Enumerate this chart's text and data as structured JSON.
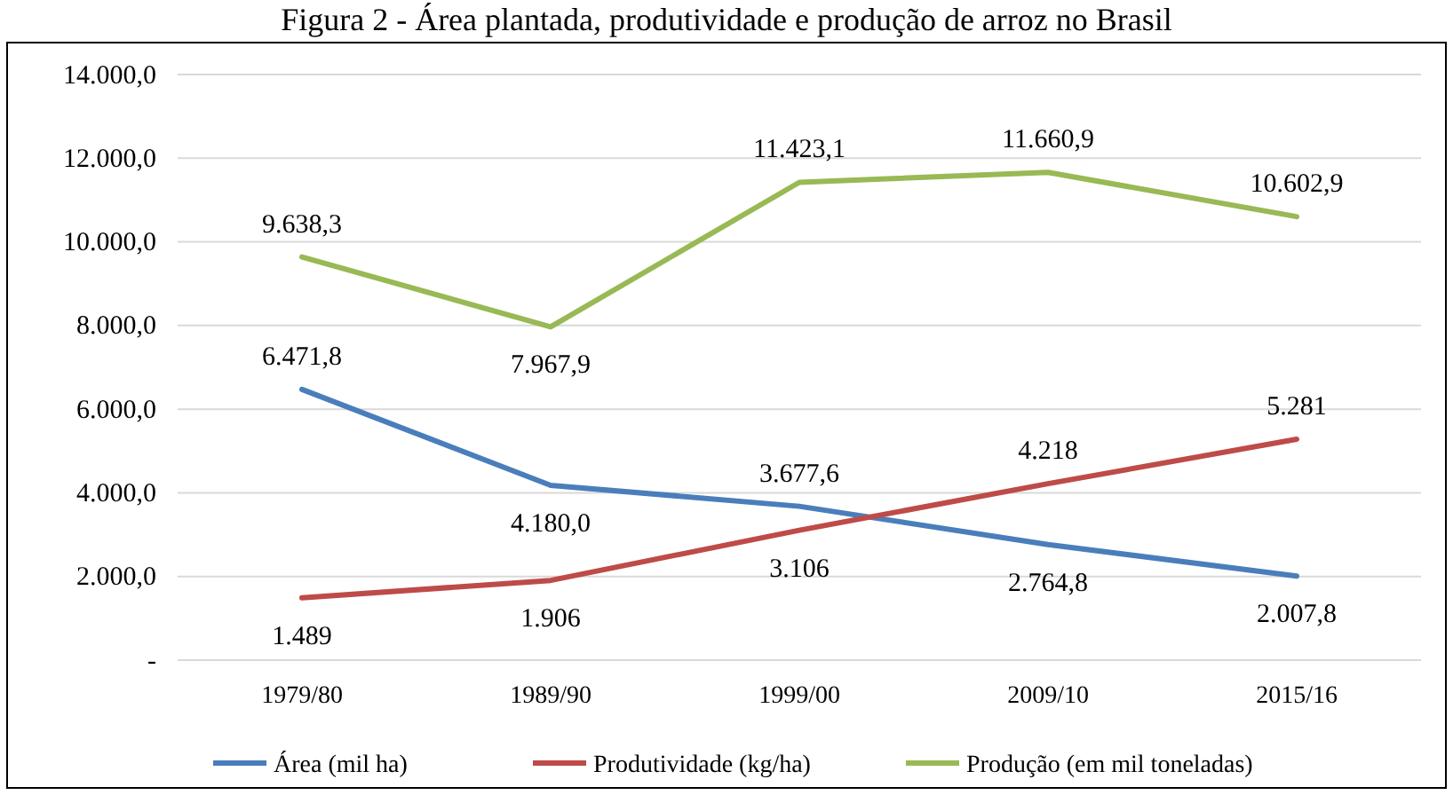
{
  "chart_data": {
    "type": "line",
    "title": "Figura 2 - Área plantada, produtividade e produção de arroz no Brasil",
    "categories": [
      "1979/80",
      "1989/90",
      "1999/00",
      "2009/10",
      "2015/16"
    ],
    "series": [
      {
        "name": "Área (mil ha)",
        "color": "#4a7ebb",
        "values": [
          6471.8,
          4180.0,
          3677.6,
          2764.8,
          2007.8
        ],
        "value_labels": [
          "6.471,8",
          "4.180,0",
          "3.677,6",
          "2.764,8",
          "2.007,8"
        ]
      },
      {
        "name": "Produtividade (kg/ha)",
        "color": "#be4b48",
        "values": [
          1489,
          1906,
          3106,
          4218,
          5281
        ],
        "value_labels": [
          "1.489",
          "1.906",
          "3.106",
          "4.218",
          "5.281"
        ]
      },
      {
        "name": "Produção (em mil toneladas)",
        "color": "#98b954",
        "values": [
          9638.3,
          7967.9,
          11423.1,
          11660.9,
          10602.9
        ],
        "value_labels": [
          "9.638,3",
          "7.967,9",
          "11.423,1",
          "11.660,9",
          "10.602,9"
        ]
      }
    ],
    "ylim": [
      0,
      14000
    ],
    "yticks": [
      {
        "value": 0,
        "label": "-"
      },
      {
        "value": 2000,
        "label": "2.000,0"
      },
      {
        "value": 4000,
        "label": "4.000,0"
      },
      {
        "value": 6000,
        "label": "6.000,0"
      },
      {
        "value": 8000,
        "label": "8.000,0"
      },
      {
        "value": 10000,
        "label": "10.000,0"
      },
      {
        "value": 12000,
        "label": "12.000,0"
      },
      {
        "value": 14000,
        "label": "14.000,0"
      }
    ],
    "grid": "y",
    "legend": "bottom",
    "marker": "none",
    "line_style": "solid"
  }
}
